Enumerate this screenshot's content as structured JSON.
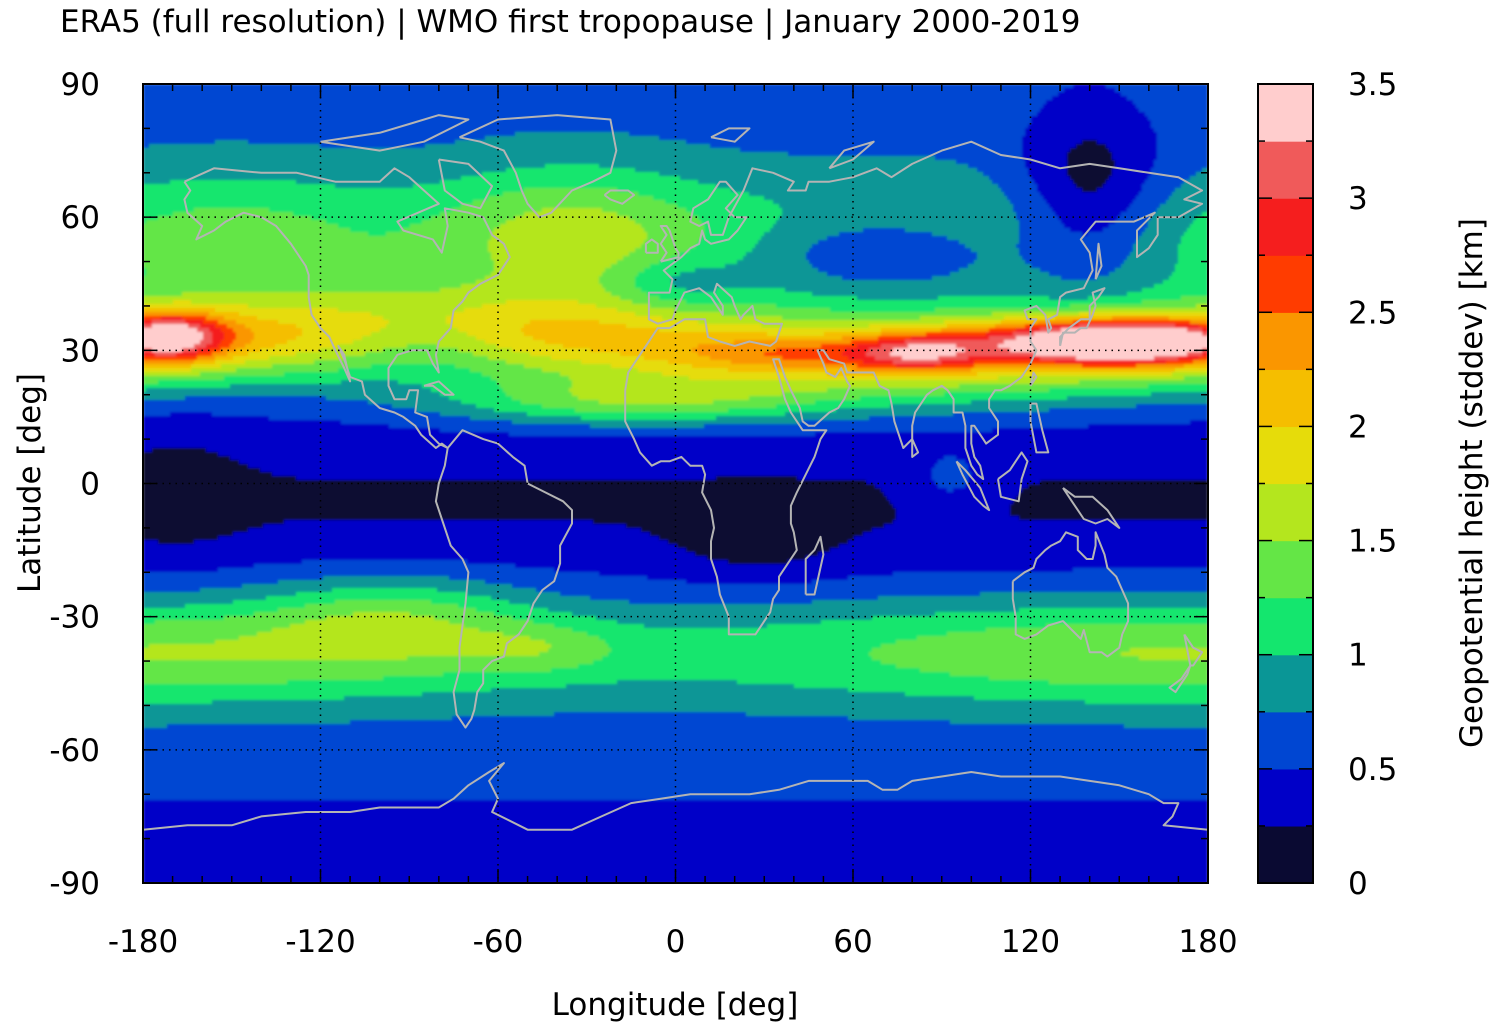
{
  "title": "ERA5 (full resolution) | WMO first tropopause | January 2000-2019",
  "chart_data": {
    "type": "heatmap",
    "title": "ERA5 (full resolution) | WMO first tropopause | January 2000-2019",
    "xlabel": "Longitude [deg]",
    "ylabel": "Latitude [deg]",
    "colorbar_label": "Geopotential height (stddev) [km]",
    "xlim": [
      -180,
      180
    ],
    "ylim": [
      -90,
      90
    ],
    "x_ticks": [
      -180,
      -120,
      -60,
      0,
      60,
      120,
      180
    ],
    "y_ticks": [
      90,
      60,
      30,
      0,
      -30,
      -60,
      -90
    ],
    "x_tick_labels": [
      "-180",
      "-120",
      "-60",
      "0",
      "60",
      "120",
      "180"
    ],
    "y_tick_labels": [
      "90",
      "60",
      "30",
      "0",
      "-30",
      "-60",
      "-90"
    ],
    "grid": true,
    "coastlines": true,
    "coastline_color": "#b4b4b4",
    "colorbar": {
      "levels": [
        0,
        0.25,
        0.5,
        0.75,
        1,
        1.25,
        1.5,
        1.75,
        2,
        2.25,
        2.5,
        2.75,
        3,
        3.25,
        3.5
      ],
      "colors": [
        "#0a0a32",
        "#0000c8",
        "#0046d2",
        "#0a9696",
        "#14e66e",
        "#64e646",
        "#b4e61e",
        "#e6dc0a",
        "#f5be00",
        "#fa9600",
        "#ff3c00",
        "#f51e1e",
        "#f05a5a",
        "#ffcdcd"
      ],
      "tick_values": [
        0,
        0.5,
        1,
        1.5,
        2,
        2.5,
        3,
        3.5
      ],
      "tick_labels": [
        "0",
        "0.5",
        "1",
        "1.5",
        "2",
        "2.5",
        "3",
        "3.5"
      ]
    }
  }
}
